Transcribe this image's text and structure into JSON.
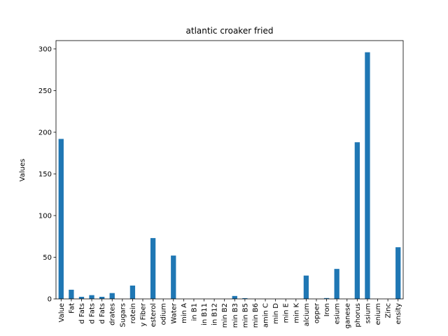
{
  "chart_data": {
    "type": "bar",
    "title": "atlantic croaker fried",
    "xlabel": "",
    "ylabel": "Values",
    "ylim": [
      0,
      310
    ],
    "yticks": [
      0,
      50,
      100,
      150,
      200,
      250,
      300
    ],
    "bar_color": "#1f77b4",
    "legend": "none",
    "grid": false,
    "categories": [
      "Value",
      "Fat",
      "d Fats",
      "d Fats",
      "d Fats",
      "drates",
      "Sugars",
      "rotein",
      "y Fiber",
      "esterol",
      "odium",
      "Water",
      "min A",
      "in B1",
      "in B11",
      "in B12",
      "min B2",
      "min B3",
      "min B5",
      "min B6",
      "amin C",
      "min D",
      "min E",
      "min K",
      "alcium",
      "opper",
      "Iron",
      "esium",
      "ganese",
      "phorus",
      "ssium",
      "enium",
      "Zinc",
      "ensity"
    ],
    "values": [
      192,
      11,
      2.5,
      4.5,
      2.5,
      7,
      0,
      16,
      0,
      73,
      0,
      52,
      0,
      0,
      0,
      0,
      0,
      3.5,
      0.9,
      0,
      0,
      0,
      0,
      0,
      28,
      0,
      1,
      36,
      0,
      188,
      296,
      0,
      0,
      62
    ]
  }
}
